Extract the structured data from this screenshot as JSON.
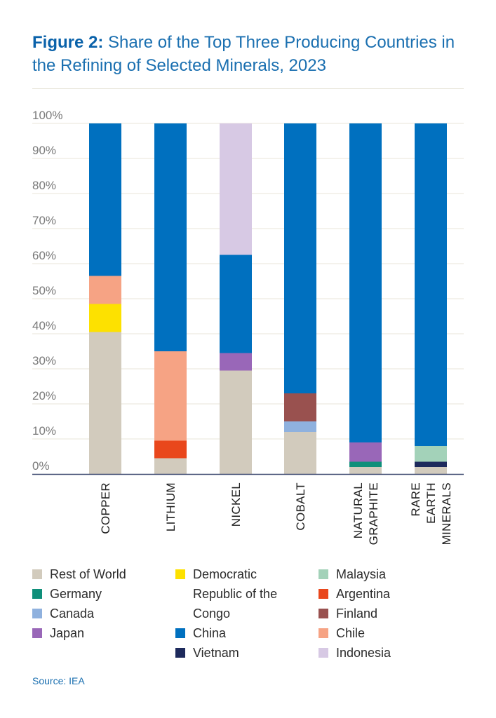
{
  "title": {
    "bold": "Figure 2:",
    "text": " Share of the Top Three Producing Countries in the Refining of Selected Minerals, 2023"
  },
  "source": "Source: IEA",
  "colors": {
    "Rest of World": "#d2cbbd",
    "Democratic Republic of the Congo": "#fde100",
    "Malaysia": "#a3d2b9",
    "Germany": "#0f8f7a",
    "Argentina": "#e9471c",
    "Canada": "#8fb1de",
    "Finland": "#99514f",
    "Japan": "#9967b8",
    "China": "#0070bf",
    "Chile": "#f6a384",
    "Vietnam": "#1d2a5c",
    "Indonesia": "#d7c9e4"
  },
  "legend": [
    {
      "label": "Rest of World",
      "key": "Rest of World"
    },
    {
      "label": "Germany",
      "key": "Germany"
    },
    {
      "label": "Canada",
      "key": "Canada"
    },
    {
      "label": "Japan",
      "key": "Japan"
    },
    {
      "label": "Democratic Republic of the Congo",
      "key": "Democratic Republic of the Congo"
    },
    {
      "label": "China",
      "key": "China"
    },
    {
      "label": "Vietnam",
      "key": "Vietnam"
    },
    {
      "label": "Malaysia",
      "key": "Malaysia"
    },
    {
      "label": "Argentina",
      "key": "Argentina"
    },
    {
      "label": "Finland",
      "key": "Finland"
    },
    {
      "label": "Chile",
      "key": "Chile"
    },
    {
      "label": "Indonesia",
      "key": "Indonesia"
    }
  ],
  "chart_data": {
    "type": "bar",
    "stacked": true,
    "title": "Share of the Top Three Producing Countries in the Refining of Selected Minerals, 2023",
    "xlabel": "",
    "ylabel": "",
    "ylim": [
      0,
      100
    ],
    "yticks": [
      "0%",
      "10%",
      "20%",
      "30%",
      "40%",
      "50%",
      "60%",
      "70%",
      "80%",
      "90%",
      "100%"
    ],
    "categories": [
      "COPPER",
      "LITHIUM",
      "NICKEL",
      "COBALT",
      "NATURAL GRAPHITE",
      "RARE EARTH MINERALS"
    ],
    "category_lines": [
      [
        "COPPER"
      ],
      [
        "LITHIUM"
      ],
      [
        "NICKEL"
      ],
      [
        "COBALT"
      ],
      [
        "NATURAL",
        "GRAPHITE"
      ],
      [
        "RARE",
        "EARTH",
        "MINERALS"
      ]
    ],
    "stacks": [
      [
        {
          "name": "Rest of World",
          "value": 40.5
        },
        {
          "name": "Democratic Republic of the Congo",
          "value": 8
        },
        {
          "name": "Chile",
          "value": 8
        },
        {
          "name": "China",
          "value": 43.5
        }
      ],
      [
        {
          "name": "Rest of World",
          "value": 4.5
        },
        {
          "name": "Argentina",
          "value": 5
        },
        {
          "name": "Chile",
          "value": 25.5
        },
        {
          "name": "China",
          "value": 65
        }
      ],
      [
        {
          "name": "Rest of World",
          "value": 29.5
        },
        {
          "name": "Japan",
          "value": 5
        },
        {
          "name": "China",
          "value": 28
        },
        {
          "name": "Indonesia",
          "value": 37.5
        }
      ],
      [
        {
          "name": "Rest of World",
          "value": 12
        },
        {
          "name": "Canada",
          "value": 3
        },
        {
          "name": "Finland",
          "value": 8
        },
        {
          "name": "China",
          "value": 77
        }
      ],
      [
        {
          "name": "Rest of World",
          "value": 2
        },
        {
          "name": "Germany",
          "value": 1.5
        },
        {
          "name": "Japan",
          "value": 5.5
        },
        {
          "name": "China",
          "value": 91
        }
      ],
      [
        {
          "name": "Rest of World",
          "value": 2
        },
        {
          "name": "Vietnam",
          "value": 1.5
        },
        {
          "name": "Malaysia",
          "value": 4.5
        },
        {
          "name": "China",
          "value": 92
        }
      ]
    ]
  }
}
